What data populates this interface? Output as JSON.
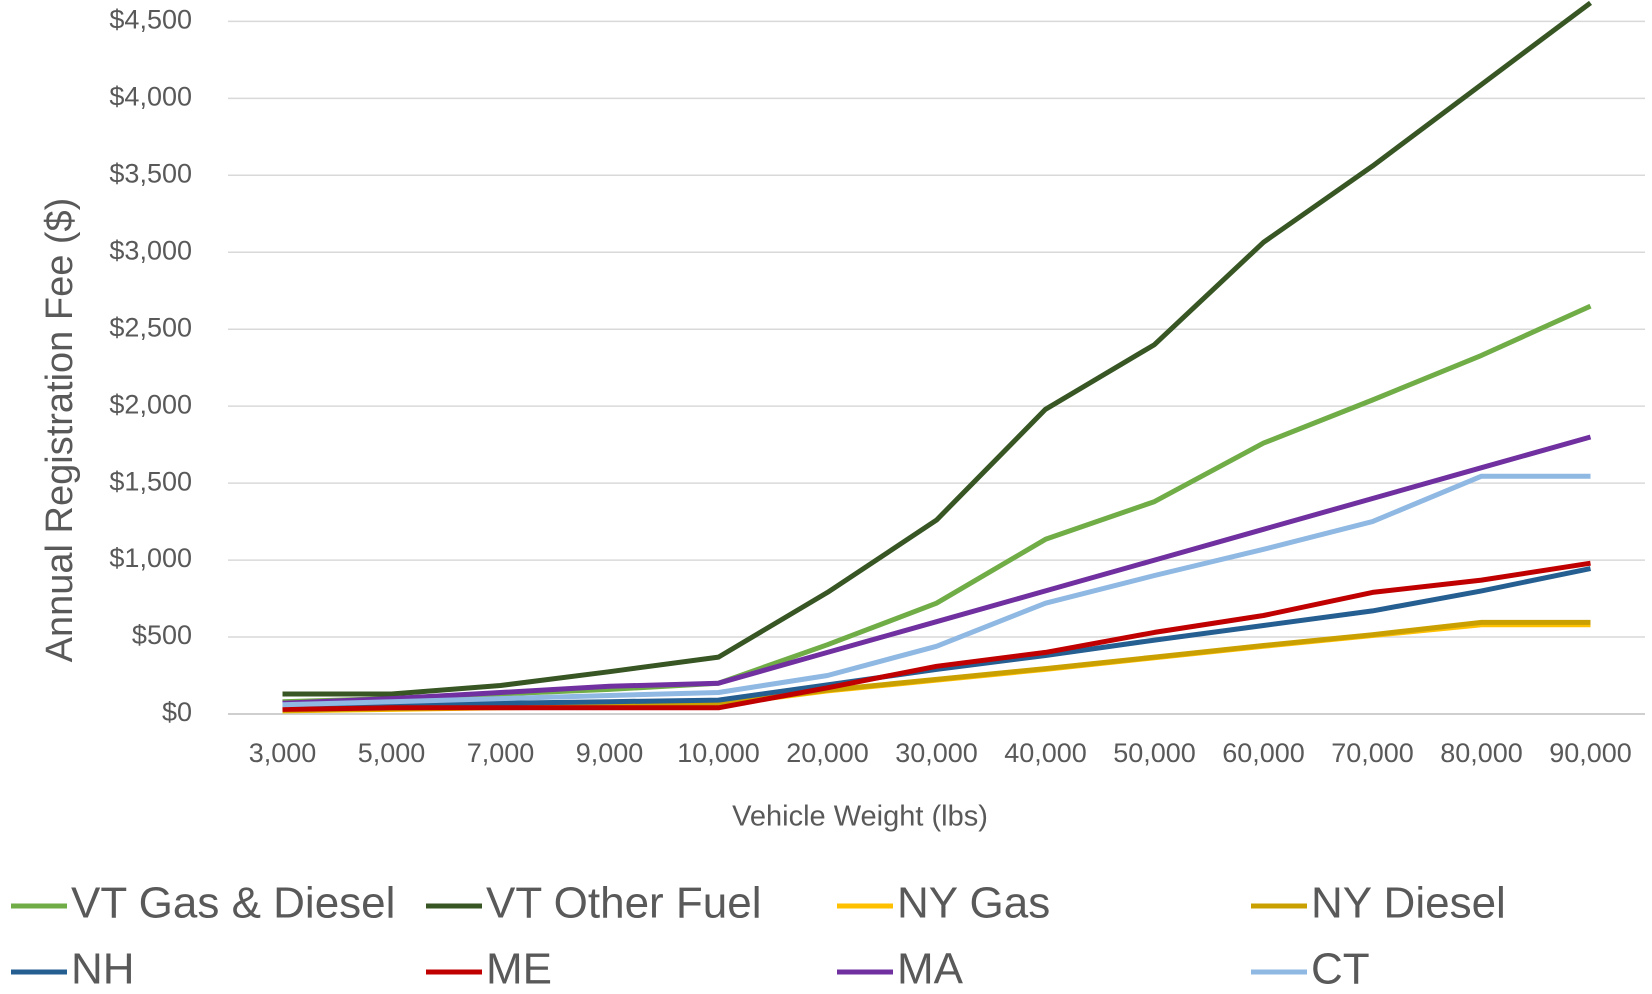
{
  "chart_data": {
    "type": "line",
    "y_label": "Annual Registration Fee ($)",
    "x_label": "Vehicle Weight (lbs)",
    "categories": [
      "3,000",
      "5,000",
      "7,000",
      "9,000",
      "10,000",
      "20,000",
      "30,000",
      "40,000",
      "50,000",
      "60,000",
      "70,000",
      "80,000",
      "90,000"
    ],
    "series": [
      {
        "name": "VT Gas & Diesel",
        "color": "#70ad47",
        "values": [
          80,
          100,
          130,
          160,
          200,
          450,
          720,
          1135,
          1380,
          1760,
          2040,
          2330,
          2650
        ]
      },
      {
        "name": "VT Other Fuel",
        "color": "#375623",
        "values": [
          130,
          130,
          185,
          275,
          370,
          790,
          1260,
          1980,
          2400,
          3065,
          3560,
          4090,
          4620
        ]
      },
      {
        "name": "NY Gas",
        "color": "#ffc000",
        "values": [
          20,
          30,
          40,
          50,
          60,
          150,
          220,
          290,
          365,
          440,
          510,
          580,
          580
        ]
      },
      {
        "name": "NY Diesel",
        "color": "#c9a000",
        "values": [
          25,
          35,
          45,
          55,
          65,
          155,
          225,
          295,
          370,
          445,
          515,
          595,
          595
        ]
      },
      {
        "name": "NH",
        "color": "#255e91",
        "values": [
          50,
          60,
          70,
          80,
          90,
          190,
          290,
          380,
          480,
          575,
          670,
          800,
          945
        ]
      },
      {
        "name": "ME",
        "color": "#c00000",
        "values": [
          30,
          40,
          40,
          40,
          40,
          170,
          310,
          400,
          530,
          640,
          790,
          870,
          980
        ]
      },
      {
        "name": "MA",
        "color": "#7030a0",
        "values": [
          70,
          100,
          140,
          180,
          200,
          400,
          600,
          800,
          1000,
          1200,
          1400,
          1600,
          1800
        ]
      },
      {
        "name": "CT",
        "color": "#8fb8e3",
        "values": [
          60,
          80,
          100,
          120,
          140,
          250,
          440,
          720,
          900,
          1070,
          1250,
          1545,
          1545
        ]
      }
    ],
    "ylim": [
      0,
      4600
    ],
    "yticks": [
      {
        "value": 0,
        "label": "$0"
      },
      {
        "value": 500,
        "label": "$500"
      },
      {
        "value": 1000,
        "label": "$1,000"
      },
      {
        "value": 1500,
        "label": "$1,500"
      },
      {
        "value": 2000,
        "label": "$2,000"
      },
      {
        "value": 2500,
        "label": "$2,500"
      },
      {
        "value": 3000,
        "label": "$3,000"
      },
      {
        "value": 3500,
        "label": "$3,500"
      },
      {
        "value": 4000,
        "label": "$4,000"
      },
      {
        "value": 4500,
        "label": "$4,500"
      }
    ],
    "grid": true,
    "legend": "bottom"
  }
}
